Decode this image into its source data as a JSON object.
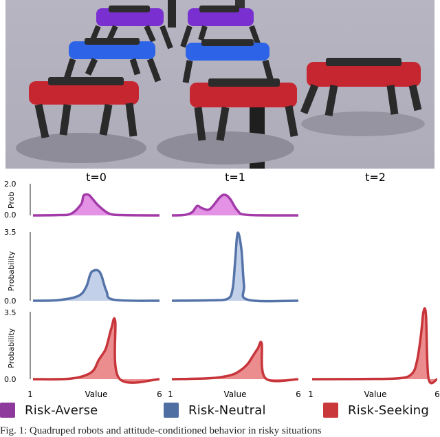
{
  "columns": [
    "t=0",
    "t=1",
    "t=2"
  ],
  "rows": [
    {
      "name": "risk-averse",
      "ylabel": "Prob",
      "yticks": [
        "2.0",
        "0.0"
      ],
      "ymax": 2.0
    },
    {
      "name": "risk-neutral",
      "ylabel": "Probability",
      "yticks": [
        "3.5",
        "0.0"
      ],
      "ymax": 3.5
    },
    {
      "name": "risk-seeking",
      "ylabel": "Probability",
      "yticks": [
        "3.5",
        "0.0"
      ],
      "ymax": 3.5
    }
  ],
  "xaxis": {
    "label": "Value",
    "min": "1",
    "max": "6"
  },
  "legend": [
    {
      "label": "Risk-Averse",
      "color": "#8e3a9c"
    },
    {
      "label": "Risk-Neutral",
      "color": "#4f6fa3"
    },
    {
      "label": "Risk-Seeking",
      "color": "#c9393c"
    }
  ],
  "colors": {
    "averse_line": "#a23aa8",
    "averse_fill": "#df7fe0",
    "neutral_line": "#5473a8",
    "neutral_fill": "#b9c8e6",
    "seeking_line": "#c7353a",
    "seeking_fill": "#e8787a"
  },
  "chart_data": [
    {
      "type": "area",
      "panel": "Risk-Averse t=0",
      "x": [
        1,
        2,
        2.5,
        2.9,
        3.0,
        3.2,
        3.35,
        3.6,
        4.0,
        4.5,
        6
      ],
      "y": [
        0,
        0.02,
        0.1,
        0.7,
        1.25,
        1.3,
        1.05,
        0.6,
        0.12,
        0.02,
        0
      ],
      "xlim": [
        1,
        6
      ],
      "ylim": [
        0,
        2.0
      ]
    },
    {
      "type": "area",
      "panel": "Risk-Averse t=1",
      "x": [
        1,
        1.5,
        1.8,
        2.0,
        2.2,
        2.5,
        2.9,
        3.1,
        3.3,
        3.6,
        4.0,
        6
      ],
      "y": [
        0,
        0.03,
        0.2,
        0.6,
        0.45,
        0.4,
        1.15,
        1.3,
        1.05,
        0.3,
        0.03,
        0
      ],
      "xlim": [
        1,
        6
      ],
      "ylim": [
        0,
        2.0
      ]
    },
    {
      "type": "area",
      "panel": "Risk-Neutral t=0",
      "x": [
        1,
        2,
        2.8,
        3.1,
        3.25,
        3.35,
        3.55,
        3.7,
        3.9,
        4.2,
        6
      ],
      "y": [
        0,
        0.03,
        0.25,
        0.7,
        1.3,
        1.5,
        1.55,
        1.3,
        0.5,
        0.05,
        0
      ],
      "xlim": [
        1,
        6
      ],
      "ylim": [
        0,
        3.5
      ]
    },
    {
      "type": "area",
      "panel": "Risk-Neutral t=1",
      "x": [
        1,
        2.5,
        3.2,
        3.4,
        3.5,
        3.6,
        3.75,
        3.85,
        4.0,
        6
      ],
      "y": [
        0,
        0.02,
        0.1,
        0.6,
        2.0,
        3.45,
        2.6,
        0.8,
        0.05,
        0
      ],
      "xlim": [
        1,
        6
      ],
      "ylim": [
        0,
        3.5
      ]
    },
    {
      "type": "area",
      "panel": "Risk-Seeking t=0",
      "x": [
        1,
        2.5,
        3.3,
        3.6,
        3.85,
        3.95,
        4.1,
        4.25,
        4.4,
        6
      ],
      "y": [
        0,
        0.03,
        0.35,
        1.0,
        1.5,
        1.9,
        2.65,
        3.0,
        0.05,
        0
      ],
      "xlim": [
        1,
        6
      ],
      "ylim": [
        0,
        3.5
      ]
    },
    {
      "type": "area",
      "panel": "Risk-Seeking t=1",
      "x": [
        1,
        2.5,
        3.3,
        3.7,
        4.0,
        4.2,
        4.4,
        4.55,
        4.7,
        6
      ],
      "y": [
        0,
        0.05,
        0.2,
        0.45,
        0.8,
        1.2,
        1.6,
        1.85,
        0.05,
        0
      ],
      "xlim": [
        1,
        6
      ],
      "ylim": [
        0,
        3.5
      ]
    },
    {
      "type": "area",
      "panel": "Risk-Seeking t=2",
      "x": [
        1,
        3,
        4.5,
        5.0,
        5.2,
        5.35,
        5.45,
        5.55,
        5.65,
        6
      ],
      "y": [
        0,
        0.01,
        0.05,
        0.3,
        1.0,
        2.3,
        3.5,
        3.3,
        0.05,
        0
      ],
      "xlim": [
        1,
        6
      ],
      "ylim": [
        0,
        3.5
      ]
    }
  ],
  "caption": "Fig. 1: Quadruped robots and attitude-conditioned behavior in risky situations"
}
